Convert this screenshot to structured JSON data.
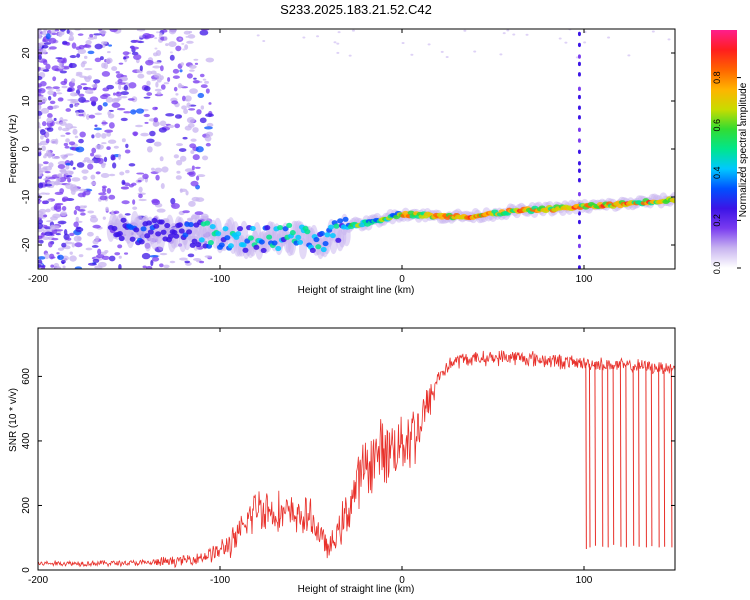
{
  "figure": {
    "title": "S233.2025.183.21.52.C42"
  },
  "chart_data": [
    {
      "type": "heatmap",
      "xlabel": "Height of straight line (km)",
      "ylabel": "Frequency (Hz)",
      "xlim": [
        -200,
        150
      ],
      "ylim": [
        -25,
        25
      ],
      "xticks": [
        -200,
        -100,
        0,
        100
      ],
      "yticks": [
        -20,
        -10,
        0,
        10,
        20
      ],
      "grid": false,
      "track": {
        "x": [
          -200,
          -150,
          -120,
          -100,
          -80,
          -60,
          -45,
          -30,
          -20,
          -10,
          0,
          20,
          40,
          60,
          80,
          100,
          120,
          150
        ],
        "frequency": [
          -17,
          -17,
          -17.5,
          -18,
          -19,
          -18,
          -20,
          -16,
          -15.5,
          -14.5,
          -13.5,
          -14,
          -14,
          -13,
          -12.5,
          -12,
          -11.5,
          -10.5
        ]
      },
      "colorbar": {
        "label": "Normalized spectral amplitude",
        "ticks": [
          0.0,
          0.2,
          0.4,
          0.6,
          0.8
        ],
        "tick_labels": [
          "0.0",
          "0.2",
          "0.4",
          "0.6",
          "0.8"
        ],
        "range": [
          0,
          1
        ],
        "colors": [
          "#ffffff",
          "#c8b4f0",
          "#7a3cf0",
          "#3c14e6",
          "#0050ff",
          "#00c8ff",
          "#00e68c",
          "#32dc32",
          "#c8dc00",
          "#ffb400",
          "#ff6400",
          "#ff1e1e",
          "#ff1e8c"
        ]
      }
    },
    {
      "type": "line",
      "xlabel": "Height of straight line (km)",
      "ylabel": "SNR (10 * v/v)",
      "xlim": [
        -200,
        150
      ],
      "ylim": [
        0,
        750
      ],
      "xticks": [
        -200,
        -100,
        0,
        100
      ],
      "yticks": [
        0,
        200,
        400,
        600
      ],
      "grid": false,
      "color": "#e8302a",
      "envelope": {
        "x": [
          -200,
          -140,
          -130,
          -120,
          -110,
          -100,
          -90,
          -80,
          -70,
          -60,
          -50,
          -40,
          -30,
          -25,
          -20,
          -15,
          -10,
          -5,
          0,
          5,
          10,
          15,
          20,
          25,
          30,
          40,
          60,
          80,
          100,
          101,
          150
        ],
        "mean": [
          20,
          22,
          25,
          30,
          40,
          60,
          100,
          200,
          180,
          170,
          160,
          60,
          180,
          260,
          320,
          350,
          370,
          380,
          400,
          420,
          450,
          520,
          600,
          630,
          650,
          655,
          660,
          650,
          640,
          640,
          625
        ],
        "spread": [
          10,
          12,
          20,
          18,
          25,
          40,
          60,
          90,
          80,
          70,
          70,
          40,
          90,
          110,
          110,
          120,
          120,
          120,
          130,
          130,
          120,
          70,
          40,
          30,
          30,
          25,
          30,
          30,
          25,
          25,
          25
        ]
      },
      "dropouts": {
        "x": [
          101,
          103,
          106,
          110,
          113,
          116,
          120,
          123,
          127,
          130,
          134,
          137,
          141,
          144,
          148
        ],
        "value": [
          65,
          70,
          75,
          72,
          70,
          78,
          72,
          70,
          75,
          72,
          70,
          74,
          70,
          72,
          70
        ]
      }
    }
  ]
}
